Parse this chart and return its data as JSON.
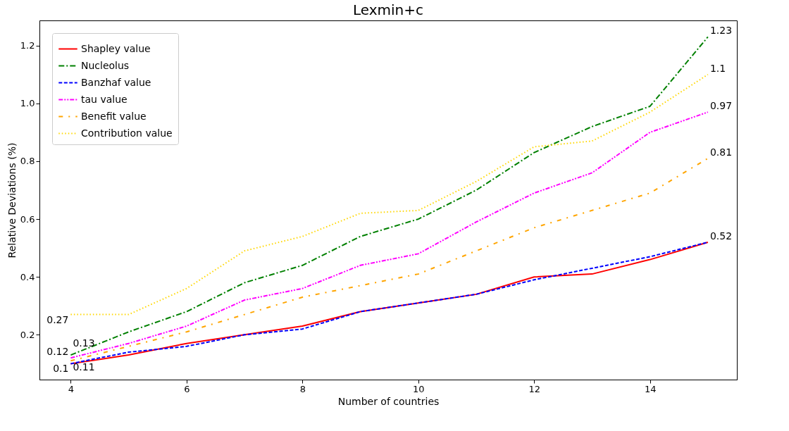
{
  "chart_data": {
    "type": "line",
    "title": "Lexmin+c",
    "xlabel": "Number of countries",
    "ylabel": "Relative Deviations (%)",
    "x": [
      4,
      5,
      6,
      7,
      8,
      9,
      10,
      11,
      12,
      13,
      14,
      15
    ],
    "xlim": [
      3.46,
      15.5
    ],
    "xticks": [
      4,
      6,
      8,
      10,
      12,
      14
    ],
    "ylim": [
      0.045,
      1.287
    ],
    "yticks": [
      0.2,
      0.4,
      0.6,
      0.8,
      {
        "value": 1.0,
        "label": "1.0"
      },
      1.2
    ],
    "grid": false,
    "legend": "top left",
    "series": [
      {
        "name": "Shapley value",
        "color": "#ff0000",
        "line_style": "solid",
        "values": [
          0.1,
          0.13,
          0.17,
          0.2,
          0.23,
          0.28,
          0.31,
          0.34,
          0.4,
          0.41,
          0.46,
          0.52
        ],
        "value_labels": [
          "0.1",
          null,
          null,
          null,
          null,
          null,
          null,
          null,
          null,
          null,
          null,
          "0.52"
        ]
      },
      {
        "name": "Nucleolus",
        "color": "#008000",
        "line_style": "dashdot",
        "values": [
          0.13,
          0.21,
          0.28,
          0.38,
          0.44,
          0.54,
          0.6,
          0.7,
          0.83,
          0.92,
          0.99,
          1.23
        ],
        "value_labels": [
          "0.13",
          null,
          null,
          null,
          null,
          null,
          null,
          null,
          null,
          null,
          null,
          "1.23"
        ]
      },
      {
        "name": "Banzhaf value",
        "color": "#0000ff",
        "line_style": "dashed",
        "values": [
          0.1,
          0.14,
          0.16,
          0.2,
          0.22,
          0.28,
          0.31,
          0.34,
          0.39,
          0.43,
          0.47,
          0.52
        ]
      },
      {
        "name": "tau value",
        "color": "#ff00ff",
        "line_style": "dashdotdot",
        "values": [
          0.12,
          0.17,
          0.23,
          0.32,
          0.36,
          0.44,
          0.48,
          0.59,
          0.69,
          0.76,
          0.9,
          0.97
        ],
        "value_labels": [
          "0.12",
          null,
          null,
          null,
          null,
          null,
          null,
          null,
          null,
          null,
          null,
          "0.97"
        ]
      },
      {
        "name": "Benefit value",
        "color": "#ffa500",
        "line_style": "loosedashdot",
        "values": [
          0.11,
          0.16,
          0.21,
          0.27,
          0.33,
          0.37,
          0.41,
          0.49,
          0.57,
          0.63,
          0.69,
          0.81
        ],
        "value_labels": [
          "0.11",
          null,
          null,
          null,
          null,
          null,
          null,
          null,
          null,
          null,
          null,
          "0.81"
        ]
      },
      {
        "name": "Contribution value",
        "color": "#ffd700",
        "line_style": "dotted",
        "values": [
          0.27,
          0.27,
          0.36,
          0.49,
          0.54,
          0.62,
          0.63,
          0.73,
          0.85,
          0.87,
          0.97,
          1.1
        ],
        "value_labels": [
          "0.27",
          null,
          null,
          null,
          null,
          null,
          null,
          null,
          null,
          null,
          null,
          "1.1"
        ]
      }
    ]
  }
}
